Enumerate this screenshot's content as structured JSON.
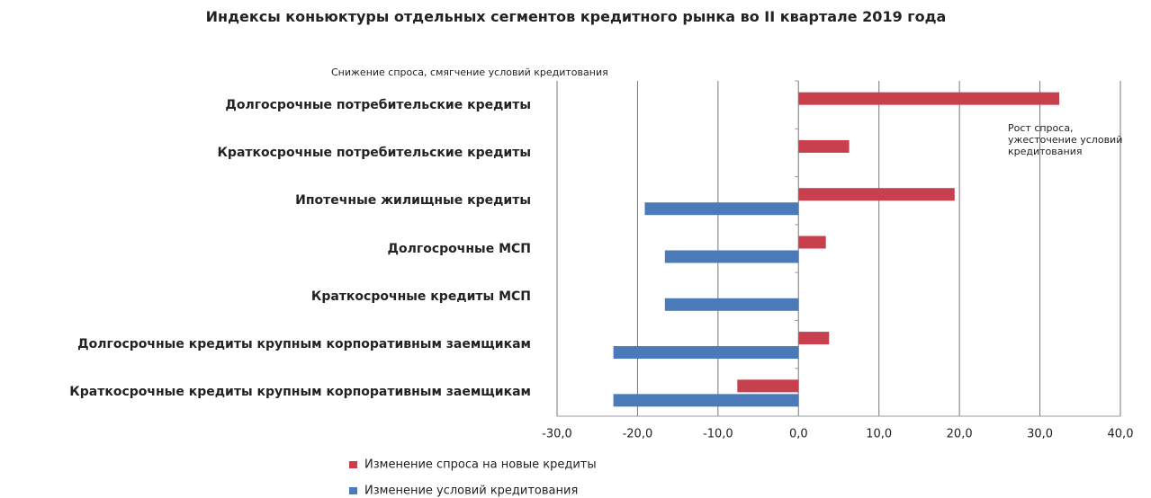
{
  "chart_data": {
    "type": "barh",
    "title": "Индексы коньюктуры отдельных сегментов кредитного рынка во II квартале 2019 года",
    "annotations": [
      "Снижение спроса, смягчение условий кредитования",
      "Рост спроса, ужесточение условий кредитования"
    ],
    "categories": [
      "Долгосрочные  потребительские кредиты",
      "Краткосрочные потребительские кредиты",
      "Ипотечные жилищные кредиты",
      "Долгосрочные МСП",
      "Краткосрочные кредиты МСП",
      "Долгосрочные  кредиты крупным корпоративным заемщикам",
      "Краткосрочные кредиты крупным корпоративным заемщикам"
    ],
    "series": [
      {
        "name": "Изменение спроса на новые кредиты",
        "color": "#c8404e",
        "values": [
          32.4,
          6.3,
          19.4,
          3.4,
          0,
          3.8,
          -7.6
        ]
      },
      {
        "name": "Изменение условий кредитования",
        "color": "#4a7ab8",
        "values": [
          0,
          0,
          -19.1,
          -16.6,
          -16.6,
          -23.0,
          -23.0
        ]
      }
    ],
    "xlim": [
      -30,
      40
    ],
    "xticks": [
      {
        "value": -30,
        "label": "-30,0"
      },
      {
        "value": -20,
        "label": "-20,0"
      },
      {
        "value": -10,
        "label": "-10,0"
      },
      {
        "value": 0,
        "label": "0,0"
      },
      {
        "value": 10,
        "label": "10,0"
      },
      {
        "value": 20,
        "label": "20,0"
      },
      {
        "value": 30,
        "label": "30,0"
      },
      {
        "value": 40,
        "label": "40,0"
      }
    ],
    "grid": true
  }
}
